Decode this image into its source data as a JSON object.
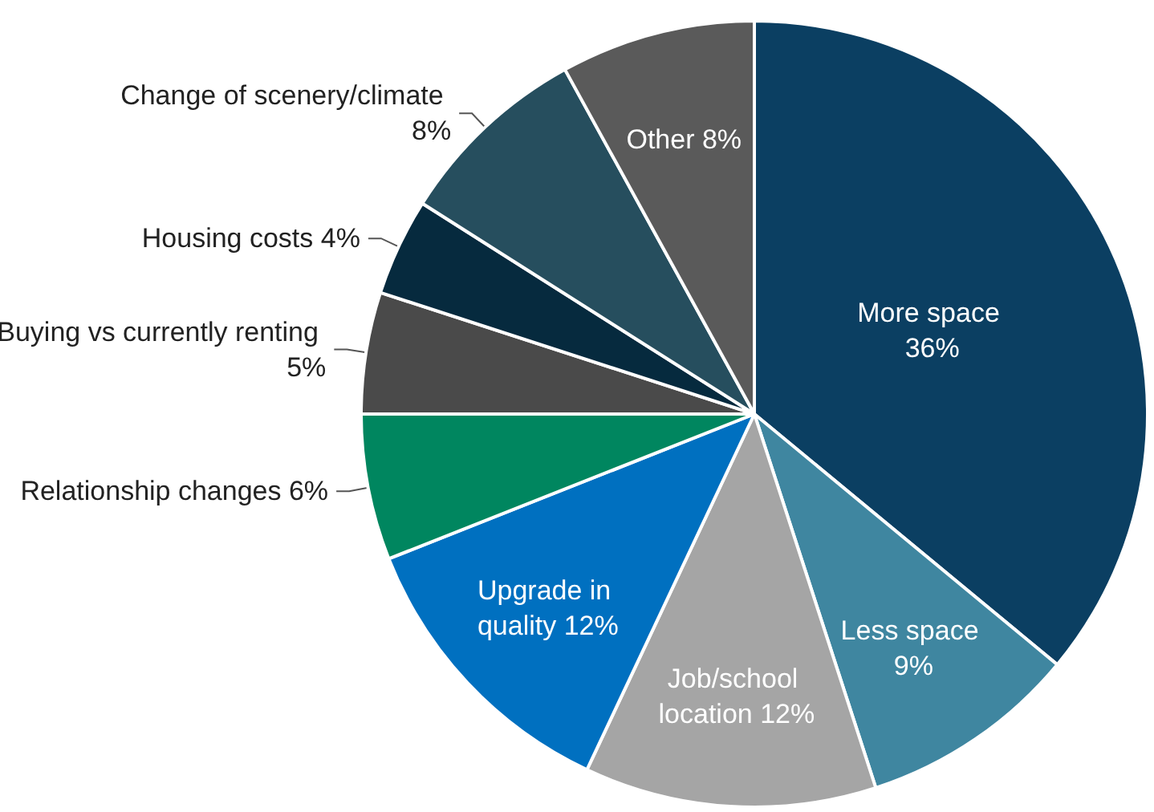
{
  "chart_data": {
    "type": "pie",
    "categories": [
      "More space",
      "Less space",
      "Job/school location",
      "Upgrade in quality",
      "Relationship changes",
      "Buying vs currently renting",
      "Housing costs",
      "Change of scenery/climate",
      "Other"
    ],
    "values": [
      36,
      9,
      12,
      12,
      6,
      5,
      4,
      8,
      8
    ],
    "colors": [
      "#0b3f62",
      "#3f86a0",
      "#a5a5a5",
      "#0070c0",
      "#00865f",
      "#4a4a4a",
      "#062a3e",
      "#264e5e",
      "#5a5a5a"
    ],
    "value_labels": [
      "36%",
      "9%",
      "12%",
      "12%",
      "6%",
      "5%",
      "4%",
      "8%",
      "8%"
    ],
    "legend": false
  }
}
